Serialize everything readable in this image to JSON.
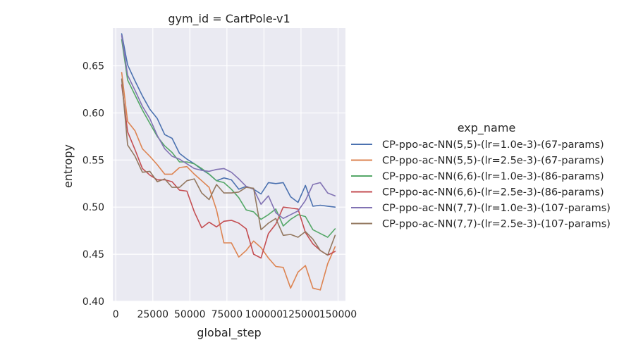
{
  "chart_data": {
    "type": "line",
    "title": "gym_id = CartPole-v1",
    "xlabel": "global_step",
    "ylabel": "entropy",
    "xlim": [
      -2000,
      155000
    ],
    "ylim": [
      0.4,
      0.69
    ],
    "xticks": [
      0,
      25000,
      50000,
      75000,
      100000,
      125000,
      150000
    ],
    "xtick_labels": [
      "0",
      "25000",
      "50000",
      "75000",
      "100000",
      "125000",
      "150000"
    ],
    "yticks": [
      0.4,
      0.45,
      0.5,
      0.55,
      0.6,
      0.65
    ],
    "ytick_labels": [
      "0.40",
      "0.45",
      "0.50",
      "0.55",
      "0.60",
      "0.65"
    ],
    "grid": true,
    "background": "#eaeaf2",
    "legend": {
      "title": "exp_name",
      "placement": "right"
    },
    "series": [
      {
        "name": "CP-ppo-ac-NN(5,5)-(lr=1.0e-3)-(67-params)",
        "color": "#4c72b0",
        "x": [
          4000,
          8000,
          13000,
          18000,
          23000,
          28000,
          33000,
          38000,
          43000,
          48000,
          53000,
          58000,
          63000,
          68000,
          73000,
          78000,
          83000,
          88000,
          93000,
          98000,
          103000,
          108000,
          113000,
          118000,
          123000,
          128000,
          133000,
          138000,
          143000,
          148000
        ],
        "y": [
          0.684,
          0.651,
          0.634,
          0.618,
          0.604,
          0.594,
          0.577,
          0.573,
          0.557,
          0.551,
          0.546,
          0.54,
          0.535,
          0.528,
          0.531,
          0.529,
          0.519,
          0.522,
          0.519,
          0.514,
          0.526,
          0.525,
          0.526,
          0.511,
          0.505,
          0.523,
          0.501,
          0.502,
          0.501,
          0.5
        ]
      },
      {
        "name": "CP-ppo-ac-NN(5,5)-(lr=2.5e-3)-(67-params)",
        "color": "#dd8452",
        "x": [
          4000,
          8000,
          13000,
          18000,
          23000,
          28000,
          33000,
          38000,
          43000,
          48000,
          53000,
          58000,
          63000,
          68000,
          73000,
          78000,
          83000,
          88000,
          93000,
          98000,
          103000,
          108000,
          113000,
          118000,
          123000,
          128000,
          133000,
          138000,
          143000,
          148000
        ],
        "y": [
          0.643,
          0.591,
          0.581,
          0.562,
          0.554,
          0.545,
          0.535,
          0.535,
          0.542,
          0.543,
          0.535,
          0.528,
          0.521,
          0.497,
          0.462,
          0.462,
          0.447,
          0.454,
          0.464,
          0.457,
          0.446,
          0.437,
          0.436,
          0.414,
          0.431,
          0.438,
          0.414,
          0.412,
          0.44,
          0.458
        ]
      },
      {
        "name": "CP-ppo-ac-NN(6,6)-(lr=1.0e-3)-(86-params)",
        "color": "#55a868",
        "x": [
          4000,
          8000,
          13000,
          18000,
          23000,
          28000,
          33000,
          38000,
          43000,
          48000,
          53000,
          58000,
          63000,
          68000,
          73000,
          78000,
          83000,
          88000,
          93000,
          98000,
          103000,
          108000,
          113000,
          118000,
          123000,
          128000,
          133000,
          138000,
          143000,
          148000
        ],
        "y": [
          0.678,
          0.635,
          0.619,
          0.603,
          0.589,
          0.575,
          0.565,
          0.558,
          0.548,
          0.548,
          0.546,
          0.541,
          0.535,
          0.528,
          0.526,
          0.519,
          0.51,
          0.497,
          0.495,
          0.487,
          0.492,
          0.498,
          0.48,
          0.487,
          0.492,
          0.49,
          0.476,
          0.472,
          0.468,
          0.477
        ]
      },
      {
        "name": "CP-ppo-ac-NN(6,6)-(lr=2.5e-3)-(86-params)",
        "color": "#c44e52",
        "x": [
          4000,
          8000,
          13000,
          18000,
          23000,
          28000,
          33000,
          38000,
          43000,
          48000,
          53000,
          58000,
          63000,
          68000,
          73000,
          78000,
          83000,
          88000,
          93000,
          98000,
          103000,
          108000,
          113000,
          118000,
          123000,
          128000,
          133000,
          138000,
          143000,
          148000
        ],
        "y": [
          0.63,
          0.58,
          0.561,
          0.541,
          0.534,
          0.529,
          0.529,
          0.527,
          0.518,
          0.517,
          0.495,
          0.478,
          0.484,
          0.479,
          0.485,
          0.486,
          0.483,
          0.477,
          0.45,
          0.446,
          0.472,
          0.482,
          0.5,
          0.499,
          0.498,
          0.473,
          0.461,
          0.454,
          0.449,
          0.453
        ]
      },
      {
        "name": "CP-ppo-ac-NN(7,7)-(lr=1.0e-3)-(107-params)",
        "color": "#8172b3",
        "x": [
          4000,
          8000,
          13000,
          18000,
          23000,
          28000,
          33000,
          38000,
          43000,
          48000,
          53000,
          58000,
          63000,
          68000,
          73000,
          78000,
          83000,
          88000,
          93000,
          98000,
          103000,
          108000,
          113000,
          118000,
          123000,
          128000,
          133000,
          138000,
          143000,
          148000
        ],
        "y": [
          0.682,
          0.64,
          0.624,
          0.607,
          0.594,
          0.576,
          0.562,
          0.554,
          0.551,
          0.546,
          0.541,
          0.539,
          0.538,
          0.54,
          0.541,
          0.537,
          0.53,
          0.522,
          0.519,
          0.503,
          0.512,
          0.494,
          0.488,
          0.492,
          0.496,
          0.507,
          0.524,
          0.526,
          0.515,
          0.512
        ]
      },
      {
        "name": "CP-ppo-ac-NN(7,7)-(lr=2.5e-3)-(107-params)",
        "color": "#937860",
        "x": [
          4000,
          8000,
          13000,
          18000,
          23000,
          28000,
          33000,
          38000,
          43000,
          48000,
          53000,
          58000,
          63000,
          68000,
          73000,
          78000,
          83000,
          88000,
          93000,
          98000,
          103000,
          108000,
          113000,
          118000,
          123000,
          128000,
          133000,
          138000,
          143000,
          148000
        ],
        "y": [
          0.636,
          0.566,
          0.554,
          0.537,
          0.538,
          0.527,
          0.53,
          0.521,
          0.521,
          0.528,
          0.53,
          0.515,
          0.508,
          0.524,
          0.515,
          0.515,
          0.516,
          0.521,
          0.52,
          0.476,
          0.483,
          0.488,
          0.47,
          0.471,
          0.468,
          0.474,
          0.466,
          0.454,
          0.449,
          0.47
        ]
      }
    ]
  }
}
